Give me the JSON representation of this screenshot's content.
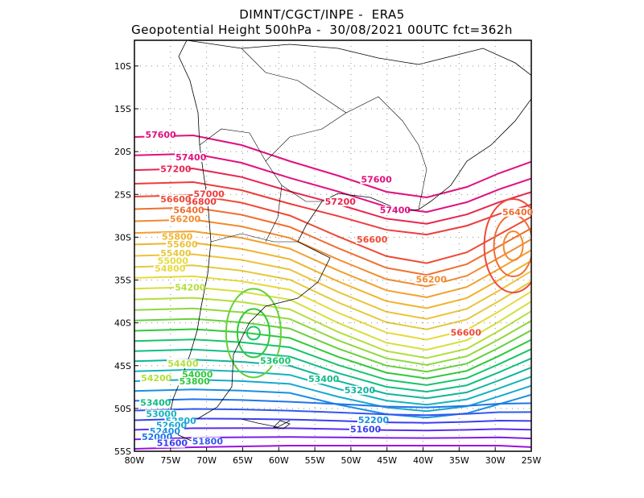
{
  "title_line1": "DIMNT/CGCT/INPE -  ERA5",
  "title_line2": "Geopotential Height 500hPa -  30/08/2021 00UTC fct=362h",
  "chart_data": {
    "type": "contour-map",
    "variable": "Geopotential Height 500hPa",
    "lon_range": [
      -80,
      -25
    ],
    "lat_range": [
      -55,
      -7
    ],
    "grid": true,
    "x_ticks": [
      "80W",
      "75W",
      "70W",
      "65W",
      "60W",
      "55W",
      "50W",
      "45W",
      "40W",
      "35W",
      "30W",
      "25W"
    ],
    "y_ticks": [
      "10S",
      "15S",
      "20S",
      "25S",
      "30S",
      "35S",
      "40S",
      "45S",
      "50S",
      "55S"
    ],
    "contour_labels": [
      {
        "value": "57600",
        "lon": -78.5,
        "lat": -18.4,
        "color": "#e0107f"
      },
      {
        "value": "57400",
        "lon": -74.3,
        "lat": -21.0,
        "color": "#e0107f"
      },
      {
        "value": "57200",
        "lon": -76.4,
        "lat": -22.4,
        "color": "#e8254f"
      },
      {
        "value": "57600",
        "lon": -48.6,
        "lat": -23.6,
        "color": "#e0107f"
      },
      {
        "value": "57000",
        "lon": -71.8,
        "lat": -25.3,
        "color": "#ee3b3b"
      },
      {
        "value": "56800",
        "lon": -72.9,
        "lat": -26.2,
        "color": "#ee3b3b"
      },
      {
        "value": "57200",
        "lon": -53.6,
        "lat": -26.2,
        "color": "#e8254f"
      },
      {
        "value": "56600",
        "lon": -76.4,
        "lat": -25.9,
        "color": "#ef4a35"
      },
      {
        "value": "56400",
        "lon": -74.6,
        "lat": -27.2,
        "color": "#f06f30"
      },
      {
        "value": "57400",
        "lon": -46.0,
        "lat": -27.2,
        "color": "#e0107f"
      },
      {
        "value": "56200",
        "lon": -75.1,
        "lat": -28.2,
        "color": "#f28a2e"
      },
      {
        "value": "56400",
        "lon": -28.2,
        "lat": -27.4,
        "color": "#f06f30"
      },
      {
        "value": "55800",
        "lon": -76.2,
        "lat": -30.3,
        "color": "#f0b32e"
      },
      {
        "value": "55600",
        "lon": -75.5,
        "lat": -31.2,
        "color": "#edc23a"
      },
      {
        "value": "56600",
        "lon": -49.2,
        "lat": -30.6,
        "color": "#ef4a35"
      },
      {
        "value": "55400",
        "lon": -76.4,
        "lat": -32.2,
        "color": "#e5c93e"
      },
      {
        "value": "55000",
        "lon": -76.8,
        "lat": -33.1,
        "color": "#e7d93d"
      },
      {
        "value": "54800",
        "lon": -77.2,
        "lat": -34.0,
        "color": "#e7d93d"
      },
      {
        "value": "56200",
        "lon": -41.0,
        "lat": -35.3,
        "color": "#f28a2e"
      },
      {
        "value": "54200",
        "lon": -74.4,
        "lat": -36.2,
        "color": "#b4de3a"
      },
      {
        "value": "56600",
        "lon": -36.2,
        "lat": -41.5,
        "color": "#ef4a35"
      },
      {
        "value": "53600",
        "lon": -62.6,
        "lat": -44.8,
        "color": "#16c56a"
      },
      {
        "value": "54400",
        "lon": -75.4,
        "lat": -45.1,
        "color": "#b4de3a"
      },
      {
        "value": "54000",
        "lon": -73.4,
        "lat": -46.4,
        "color": "#2fc93b"
      },
      {
        "value": "54200",
        "lon": -79.1,
        "lat": -46.8,
        "color": "#b4de3a"
      },
      {
        "value": "53800",
        "lon": -73.8,
        "lat": -47.2,
        "color": "#2fc93b"
      },
      {
        "value": "53400",
        "lon": -55.9,
        "lat": -46.9,
        "color": "#10bd85"
      },
      {
        "value": "53200",
        "lon": -50.9,
        "lat": -48.2,
        "color": "#10b49c"
      },
      {
        "value": "53400",
        "lon": -79.2,
        "lat": -49.7,
        "color": "#10bd85"
      },
      {
        "value": "53000",
        "lon": -78.4,
        "lat": -51.0,
        "color": "#14b4bc"
      },
      {
        "value": "52800",
        "lon": -75.7,
        "lat": -51.8,
        "color": "#17a8d0"
      },
      {
        "value": "52200",
        "lon": -49.0,
        "lat": -51.7,
        "color": "#1a8fe2"
      },
      {
        "value": "52600",
        "lon": -77.0,
        "lat": -52.3,
        "color": "#17a8d0"
      },
      {
        "value": "52400",
        "lon": -77.9,
        "lat": -53.0,
        "color": "#1a8fe2"
      },
      {
        "value": "52000",
        "lon": -79.0,
        "lat": -53.7,
        "color": "#1f74ec"
      },
      {
        "value": "51600",
        "lon": -50.1,
        "lat": -52.8,
        "color": "#3a3ef0"
      },
      {
        "value": "51600",
        "lon": -76.9,
        "lat": -54.4,
        "color": "#3a3ef0"
      },
      {
        "value": "51800",
        "lon": -72.0,
        "lat": -54.2,
        "color": "#3257f0"
      }
    ]
  }
}
